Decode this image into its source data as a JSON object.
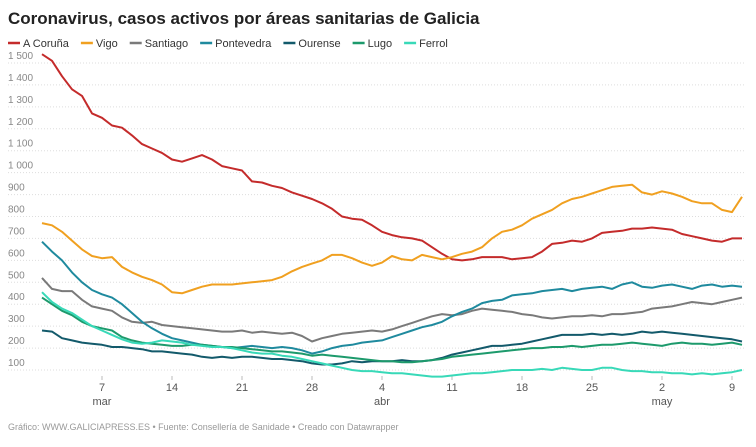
{
  "chart_data": {
    "type": "line",
    "title": "Coronavirus, casos activos por áreas sanitarias de Galicia",
    "footer": "Gráfico: WWW.GALICIAPRESS.ES • Fuente: Consellería de Sanidade • Creado con Datawrapper",
    "categories": [
      null,
      null,
      null,
      null,
      null,
      null,
      "7",
      null,
      null,
      null,
      null,
      null,
      null,
      "14",
      null,
      null,
      null,
      null,
      null,
      null,
      "21",
      null,
      null,
      null,
      null,
      null,
      null,
      "28",
      null,
      null,
      null,
      null,
      null,
      null,
      "4",
      null,
      null,
      null,
      null,
      null,
      null,
      "11",
      null,
      null,
      null,
      null,
      null,
      null,
      "18",
      null,
      null,
      null,
      null,
      null,
      null,
      "25",
      null,
      null,
      null,
      null,
      null,
      null,
      "2",
      null,
      null,
      null,
      null,
      null,
      null,
      "9",
      null
    ],
    "x_month_labels": [
      null,
      null,
      null,
      null,
      null,
      null,
      "mar",
      null,
      null,
      null,
      null,
      null,
      null,
      null,
      null,
      null,
      null,
      null,
      null,
      null,
      null,
      null,
      null,
      null,
      null,
      null,
      null,
      null,
      null,
      null,
      null,
      null,
      null,
      null,
      "abr",
      null,
      null,
      null,
      null,
      null,
      null,
      null,
      null,
      null,
      null,
      null,
      null,
      null,
      null,
      null,
      null,
      null,
      null,
      null,
      null,
      null,
      null,
      null,
      null,
      null,
      null,
      null,
      "may",
      null,
      null,
      null,
      null,
      null,
      null,
      null,
      null
    ],
    "ylim": [
      60,
      1540
    ],
    "yticks": [
      100,
      200,
      300,
      400,
      500,
      600,
      700,
      800,
      900,
      {
        "value": 1000,
        "label": "1 000"
      },
      {
        "value": 1100,
        "label": "1 100"
      },
      {
        "value": 1200,
        "label": "1 200"
      },
      {
        "value": 1300,
        "label": "1 300"
      },
      {
        "value": 1400,
        "label": "1 400"
      },
      {
        "value": 1500,
        "label": "1 500"
      }
    ],
    "grid": true,
    "legend": "top-left",
    "series": [
      {
        "name": "A Coruña",
        "color": "#c42b2b",
        "values": [
          1540,
          1510,
          1440,
          1380,
          1350,
          1270,
          1250,
          1215,
          1205,
          1170,
          1130,
          1110,
          1090,
          1060,
          1050,
          1065,
          1080,
          1060,
          1030,
          1020,
          1010,
          960,
          955,
          940,
          930,
          910,
          895,
          880,
          860,
          835,
          800,
          790,
          785,
          760,
          730,
          715,
          705,
          700,
          690,
          660,
          630,
          605,
          600,
          605,
          615,
          615,
          615,
          605,
          610,
          615,
          640,
          675,
          680,
          690,
          685,
          700,
          725,
          730,
          735,
          745,
          745,
          750,
          745,
          740,
          720,
          710,
          700,
          690,
          685,
          700,
          700
        ]
      },
      {
        "name": "Vigo",
        "color": "#f0a020",
        "values": [
          770,
          760,
          730,
          690,
          650,
          620,
          610,
          615,
          570,
          545,
          525,
          510,
          490,
          455,
          450,
          465,
          480,
          490,
          490,
          490,
          495,
          500,
          505,
          510,
          525,
          550,
          570,
          585,
          600,
          625,
          625,
          610,
          590,
          575,
          590,
          620,
          605,
          600,
          625,
          615,
          605,
          615,
          630,
          640,
          660,
          700,
          730,
          740,
          760,
          790,
          810,
          830,
          860,
          880,
          890,
          905,
          920,
          935,
          940,
          945,
          910,
          900,
          915,
          905,
          890,
          870,
          860,
          860,
          830,
          820,
          890
        ]
      },
      {
        "name": "Santiago",
        "color": "#7a7a7a",
        "values": [
          520,
          470,
          460,
          460,
          420,
          390,
          380,
          370,
          340,
          320,
          315,
          320,
          305,
          300,
          295,
          290,
          285,
          280,
          275,
          275,
          280,
          270,
          275,
          270,
          265,
          270,
          255,
          230,
          245,
          255,
          265,
          270,
          275,
          280,
          275,
          285,
          300,
          315,
          330,
          345,
          355,
          350,
          355,
          370,
          380,
          375,
          370,
          365,
          355,
          350,
          340,
          335,
          340,
          345,
          345,
          350,
          345,
          355,
          355,
          360,
          365,
          380,
          385,
          390,
          400,
          410,
          405,
          400,
          410,
          420,
          430
        ]
      },
      {
        "name": "Pontevedra",
        "color": "#1f8a9e",
        "values": [
          685,
          640,
          600,
          545,
          500,
          465,
          445,
          430,
          400,
          360,
          320,
          290,
          265,
          245,
          235,
          225,
          215,
          210,
          205,
          200,
          205,
          210,
          205,
          200,
          205,
          200,
          190,
          175,
          185,
          200,
          210,
          215,
          225,
          230,
          235,
          250,
          265,
          280,
          295,
          305,
          320,
          345,
          365,
          380,
          405,
          415,
          420,
          440,
          445,
          450,
          460,
          465,
          470,
          460,
          470,
          475,
          480,
          470,
          490,
          500,
          480,
          475,
          485,
          490,
          480,
          470,
          485,
          490,
          480,
          485,
          480
        ]
      },
      {
        "name": "Ourense",
        "color": "#135a6b",
        "values": [
          280,
          275,
          245,
          235,
          225,
          220,
          215,
          205,
          205,
          200,
          195,
          185,
          185,
          180,
          175,
          170,
          160,
          155,
          160,
          155,
          160,
          160,
          155,
          150,
          150,
          145,
          140,
          130,
          125,
          125,
          130,
          140,
          135,
          140,
          140,
          140,
          145,
          140,
          140,
          145,
          155,
          170,
          180,
          190,
          200,
          210,
          210,
          215,
          220,
          230,
          240,
          250,
          260,
          260,
          260,
          265,
          260,
          265,
          260,
          265,
          275,
          270,
          275,
          270,
          265,
          260,
          255,
          250,
          245,
          240,
          230
        ]
      },
      {
        "name": "Lugo",
        "color": "#1d9a6c",
        "values": [
          430,
          400,
          370,
          350,
          320,
          300,
          290,
          280,
          250,
          235,
          225,
          220,
          215,
          210,
          210,
          215,
          215,
          210,
          205,
          205,
          200,
          195,
          190,
          185,
          185,
          180,
          175,
          165,
          170,
          165,
          160,
          155,
          150,
          145,
          140,
          140,
          135,
          135,
          140,
          145,
          150,
          160,
          165,
          170,
          175,
          180,
          185,
          190,
          195,
          200,
          200,
          205,
          205,
          210,
          205,
          210,
          215,
          215,
          220,
          225,
          220,
          215,
          210,
          220,
          225,
          220,
          220,
          215,
          220,
          225,
          215
        ]
      },
      {
        "name": "Ferrol",
        "color": "#38d9b8",
        "values": [
          455,
          410,
          380,
          360,
          330,
          300,
          280,
          260,
          240,
          225,
          220,
          225,
          235,
          230,
          225,
          215,
          210,
          205,
          205,
          200,
          190,
          180,
          175,
          175,
          165,
          160,
          150,
          140,
          130,
          120,
          110,
          100,
          95,
          95,
          90,
          85,
          85,
          80,
          75,
          70,
          70,
          75,
          80,
          85,
          85,
          90,
          95,
          100,
          100,
          100,
          105,
          100,
          110,
          105,
          100,
          100,
          110,
          110,
          100,
          95,
          95,
          90,
          90,
          85,
          85,
          80,
          85,
          80,
          85,
          90,
          100
        ]
      }
    ]
  }
}
